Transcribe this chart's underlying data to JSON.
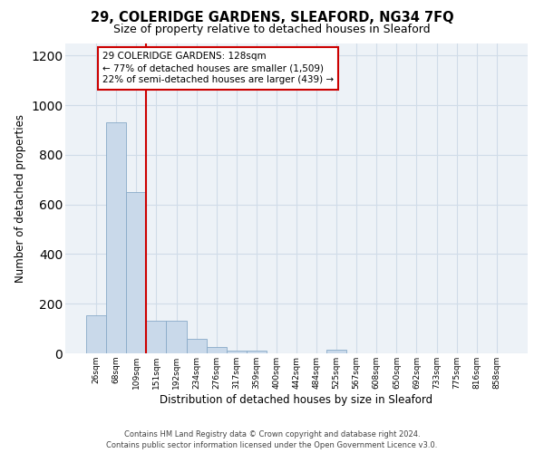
{
  "title": "29, COLERIDGE GARDENS, SLEAFORD, NG34 7FQ",
  "subtitle": "Size of property relative to detached houses in Sleaford",
  "xlabel": "Distribution of detached houses by size in Sleaford",
  "ylabel": "Number of detached properties",
  "categories": [
    "26sqm",
    "68sqm",
    "109sqm",
    "151sqm",
    "192sqm",
    "234sqm",
    "276sqm",
    "317sqm",
    "359sqm",
    "400sqm",
    "442sqm",
    "484sqm",
    "525sqm",
    "567sqm",
    "608sqm",
    "650sqm",
    "692sqm",
    "733sqm",
    "775sqm",
    "816sqm",
    "858sqm"
  ],
  "values": [
    155,
    930,
    650,
    130,
    130,
    60,
    25,
    12,
    12,
    0,
    0,
    0,
    15,
    0,
    0,
    0,
    0,
    0,
    0,
    0,
    0
  ],
  "bar_color": "#c9d9ea",
  "bar_edge_color": "#88aac8",
  "grid_color": "#d0dce8",
  "bg_color": "#edf2f7",
  "vline_x": 2.5,
  "vline_color": "#cc0000",
  "annotation_text": "29 COLERIDGE GARDENS: 128sqm\n← 77% of detached houses are smaller (1,509)\n22% of semi-detached houses are larger (439) →",
  "annotation_box_facecolor": "white",
  "annotation_box_edgecolor": "#cc0000",
  "footer": "Contains HM Land Registry data © Crown copyright and database right 2024.\nContains public sector information licensed under the Open Government Licence v3.0.",
  "ylim": [
    0,
    1250
  ],
  "yticks": [
    0,
    200,
    400,
    600,
    800,
    1000,
    1200
  ],
  "title_fontsize": 10.5,
  "subtitle_fontsize": 9,
  "tick_fontsize": 6.5,
  "ylabel_fontsize": 8.5,
  "xlabel_fontsize": 8.5,
  "annotation_fontsize": 7.5,
  "footer_fontsize": 6
}
